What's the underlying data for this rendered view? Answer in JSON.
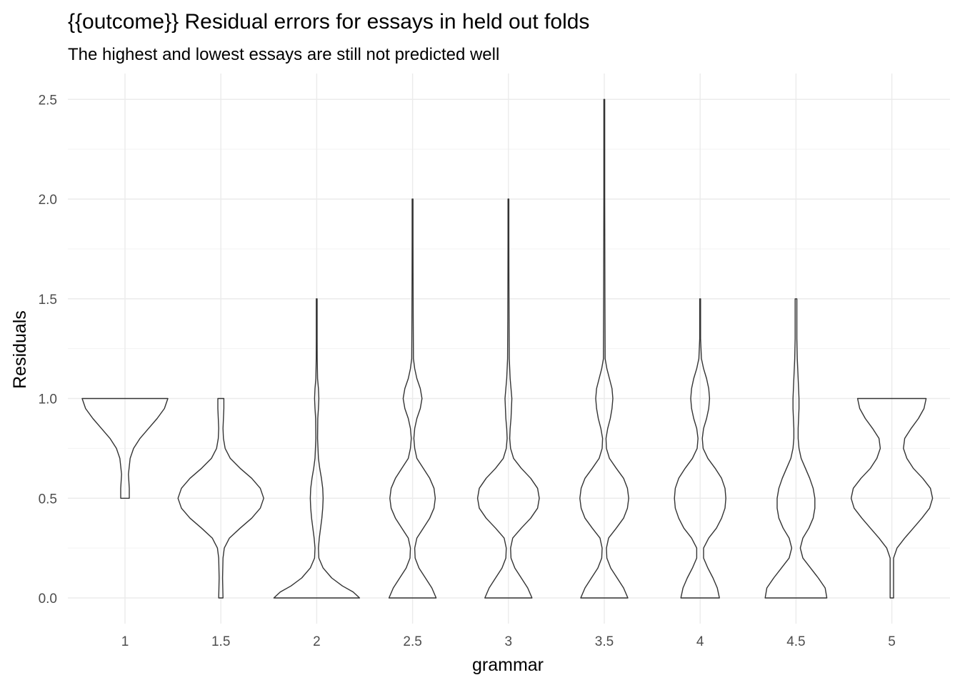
{
  "chart_data": {
    "type": "violin",
    "title": "{{outcome}} Residual errors for essays in held out folds",
    "subtitle": "The highest and lowest essays are still not predicted well",
    "xlabel": "grammar",
    "ylabel": "Residuals",
    "ylim": [
      -0.12,
      2.62
    ],
    "yticks": [
      "0.0",
      "0.5",
      "1.0",
      "1.5",
      "2.0",
      "2.5"
    ],
    "grid": true,
    "series": [
      {
        "x": "1",
        "min": 0.5,
        "max": 1.0,
        "profile": [
          [
            0.5,
            0.1
          ],
          [
            0.55,
            0.1
          ],
          [
            0.62,
            0.08
          ],
          [
            0.7,
            0.12
          ],
          [
            0.75,
            0.2
          ],
          [
            0.8,
            0.35
          ],
          [
            0.85,
            0.55
          ],
          [
            0.9,
            0.75
          ],
          [
            0.95,
            0.92
          ],
          [
            1.0,
            1.0
          ]
        ]
      },
      {
        "x": "1.5",
        "min": 0.0,
        "max": 1.0,
        "profile": [
          [
            0.0,
            0.05
          ],
          [
            0.1,
            0.04
          ],
          [
            0.2,
            0.05
          ],
          [
            0.25,
            0.08
          ],
          [
            0.3,
            0.2
          ],
          [
            0.35,
            0.45
          ],
          [
            0.4,
            0.72
          ],
          [
            0.45,
            0.92
          ],
          [
            0.5,
            1.0
          ],
          [
            0.55,
            0.92
          ],
          [
            0.6,
            0.72
          ],
          [
            0.65,
            0.45
          ],
          [
            0.7,
            0.22
          ],
          [
            0.75,
            0.1
          ],
          [
            0.8,
            0.06
          ],
          [
            0.85,
            0.05
          ],
          [
            0.9,
            0.06
          ],
          [
            0.95,
            0.07
          ],
          [
            1.0,
            0.07
          ]
        ]
      },
      {
        "x": "2",
        "min": 0.0,
        "max": 1.5,
        "profile": [
          [
            0.0,
            1.0
          ],
          [
            0.03,
            0.85
          ],
          [
            0.06,
            0.6
          ],
          [
            0.1,
            0.35
          ],
          [
            0.15,
            0.15
          ],
          [
            0.2,
            0.05
          ],
          [
            0.25,
            0.04
          ],
          [
            0.3,
            0.06
          ],
          [
            0.35,
            0.09
          ],
          [
            0.4,
            0.12
          ],
          [
            0.45,
            0.14
          ],
          [
            0.5,
            0.15
          ],
          [
            0.55,
            0.14
          ],
          [
            0.6,
            0.11
          ],
          [
            0.65,
            0.07
          ],
          [
            0.7,
            0.04
          ],
          [
            0.8,
            0.02
          ],
          [
            0.9,
            0.025
          ],
          [
            0.95,
            0.04
          ],
          [
            1.0,
            0.05
          ],
          [
            1.05,
            0.04
          ],
          [
            1.1,
            0.02
          ],
          [
            1.2,
            0.012
          ],
          [
            1.3,
            0.01
          ],
          [
            1.4,
            0.01
          ],
          [
            1.5,
            0.01
          ]
        ]
      },
      {
        "x": "2.5",
        "min": 0.0,
        "max": 2.0,
        "profile": [
          [
            0.0,
            0.55
          ],
          [
            0.05,
            0.45
          ],
          [
            0.1,
            0.3
          ],
          [
            0.15,
            0.15
          ],
          [
            0.2,
            0.06
          ],
          [
            0.25,
            0.05
          ],
          [
            0.3,
            0.1
          ],
          [
            0.35,
            0.25
          ],
          [
            0.4,
            0.4
          ],
          [
            0.45,
            0.5
          ],
          [
            0.5,
            0.53
          ],
          [
            0.55,
            0.5
          ],
          [
            0.6,
            0.4
          ],
          [
            0.65,
            0.25
          ],
          [
            0.7,
            0.1
          ],
          [
            0.75,
            0.05
          ],
          [
            0.8,
            0.03
          ],
          [
            0.85,
            0.05
          ],
          [
            0.9,
            0.1
          ],
          [
            0.95,
            0.18
          ],
          [
            1.0,
            0.22
          ],
          [
            1.05,
            0.18
          ],
          [
            1.1,
            0.1
          ],
          [
            1.15,
            0.05
          ],
          [
            1.2,
            0.02
          ],
          [
            1.4,
            0.015
          ],
          [
            1.6,
            0.012
          ],
          [
            1.8,
            0.01
          ],
          [
            2.0,
            0.01
          ]
        ]
      },
      {
        "x": "3",
        "min": 0.0,
        "max": 2.0,
        "profile": [
          [
            0.0,
            0.55
          ],
          [
            0.05,
            0.45
          ],
          [
            0.1,
            0.3
          ],
          [
            0.15,
            0.15
          ],
          [
            0.2,
            0.06
          ],
          [
            0.25,
            0.05
          ],
          [
            0.3,
            0.1
          ],
          [
            0.35,
            0.3
          ],
          [
            0.4,
            0.52
          ],
          [
            0.45,
            0.68
          ],
          [
            0.5,
            0.72
          ],
          [
            0.55,
            0.68
          ],
          [
            0.6,
            0.52
          ],
          [
            0.65,
            0.3
          ],
          [
            0.7,
            0.12
          ],
          [
            0.75,
            0.05
          ],
          [
            0.8,
            0.03
          ],
          [
            0.85,
            0.04
          ],
          [
            0.9,
            0.06
          ],
          [
            0.95,
            0.07
          ],
          [
            1.0,
            0.08
          ],
          [
            1.05,
            0.06
          ],
          [
            1.1,
            0.04
          ],
          [
            1.2,
            0.02
          ],
          [
            1.4,
            0.015
          ],
          [
            1.6,
            0.012
          ],
          [
            1.8,
            0.01
          ],
          [
            2.0,
            0.01
          ]
        ]
      },
      {
        "x": "3.5",
        "min": 0.0,
        "max": 2.5,
        "profile": [
          [
            0.0,
            0.55
          ],
          [
            0.05,
            0.45
          ],
          [
            0.1,
            0.3
          ],
          [
            0.15,
            0.15
          ],
          [
            0.2,
            0.06
          ],
          [
            0.25,
            0.05
          ],
          [
            0.3,
            0.1
          ],
          [
            0.35,
            0.28
          ],
          [
            0.4,
            0.45
          ],
          [
            0.45,
            0.54
          ],
          [
            0.5,
            0.57
          ],
          [
            0.55,
            0.54
          ],
          [
            0.6,
            0.45
          ],
          [
            0.65,
            0.28
          ],
          [
            0.7,
            0.12
          ],
          [
            0.75,
            0.05
          ],
          [
            0.8,
            0.04
          ],
          [
            0.85,
            0.08
          ],
          [
            0.9,
            0.14
          ],
          [
            0.95,
            0.18
          ],
          [
            1.0,
            0.2
          ],
          [
            1.05,
            0.18
          ],
          [
            1.1,
            0.12
          ],
          [
            1.15,
            0.06
          ],
          [
            1.2,
            0.02
          ],
          [
            1.5,
            0.015
          ],
          [
            2.0,
            0.01
          ],
          [
            2.5,
            0.01
          ]
        ]
      },
      {
        "x": "4",
        "min": 0.0,
        "max": 1.5,
        "profile": [
          [
            0.0,
            0.45
          ],
          [
            0.05,
            0.4
          ],
          [
            0.1,
            0.3
          ],
          [
            0.15,
            0.18
          ],
          [
            0.2,
            0.08
          ],
          [
            0.25,
            0.08
          ],
          [
            0.3,
            0.2
          ],
          [
            0.35,
            0.38
          ],
          [
            0.4,
            0.5
          ],
          [
            0.45,
            0.58
          ],
          [
            0.5,
            0.6
          ],
          [
            0.55,
            0.58
          ],
          [
            0.6,
            0.5
          ],
          [
            0.65,
            0.35
          ],
          [
            0.7,
            0.18
          ],
          [
            0.75,
            0.07
          ],
          [
            0.8,
            0.05
          ],
          [
            0.85,
            0.08
          ],
          [
            0.9,
            0.15
          ],
          [
            0.95,
            0.2
          ],
          [
            1.0,
            0.22
          ],
          [
            1.05,
            0.2
          ],
          [
            1.1,
            0.15
          ],
          [
            1.15,
            0.08
          ],
          [
            1.2,
            0.03
          ],
          [
            1.3,
            0.01
          ],
          [
            1.4,
            0.01
          ],
          [
            1.5,
            0.01
          ]
        ]
      },
      {
        "x": "4.5",
        "min": 0.0,
        "max": 1.5,
        "profile": [
          [
            0.0,
            0.72
          ],
          [
            0.05,
            0.68
          ],
          [
            0.1,
            0.52
          ],
          [
            0.15,
            0.34
          ],
          [
            0.2,
            0.16
          ],
          [
            0.25,
            0.1
          ],
          [
            0.3,
            0.16
          ],
          [
            0.35,
            0.3
          ],
          [
            0.4,
            0.4
          ],
          [
            0.45,
            0.44
          ],
          [
            0.5,
            0.44
          ],
          [
            0.55,
            0.4
          ],
          [
            0.6,
            0.32
          ],
          [
            0.65,
            0.22
          ],
          [
            0.7,
            0.12
          ],
          [
            0.75,
            0.07
          ],
          [
            0.8,
            0.05
          ],
          [
            0.85,
            0.05
          ],
          [
            0.9,
            0.06
          ],
          [
            0.95,
            0.07
          ],
          [
            1.0,
            0.07
          ],
          [
            1.05,
            0.06
          ],
          [
            1.1,
            0.05
          ],
          [
            1.2,
            0.03
          ],
          [
            1.3,
            0.02
          ],
          [
            1.4,
            0.02
          ],
          [
            1.5,
            0.02
          ]
        ]
      },
      {
        "x": "5",
        "min": 0.0,
        "max": 1.0,
        "profile": [
          [
            0.0,
            0.04
          ],
          [
            0.1,
            0.04
          ],
          [
            0.2,
            0.04
          ],
          [
            0.25,
            0.12
          ],
          [
            0.3,
            0.3
          ],
          [
            0.35,
            0.5
          ],
          [
            0.4,
            0.7
          ],
          [
            0.45,
            0.88
          ],
          [
            0.5,
            0.95
          ],
          [
            0.55,
            0.9
          ],
          [
            0.6,
            0.72
          ],
          [
            0.65,
            0.5
          ],
          [
            0.7,
            0.35
          ],
          [
            0.75,
            0.27
          ],
          [
            0.8,
            0.3
          ],
          [
            0.85,
            0.45
          ],
          [
            0.9,
            0.62
          ],
          [
            0.95,
            0.75
          ],
          [
            1.0,
            0.8
          ]
        ]
      }
    ]
  }
}
